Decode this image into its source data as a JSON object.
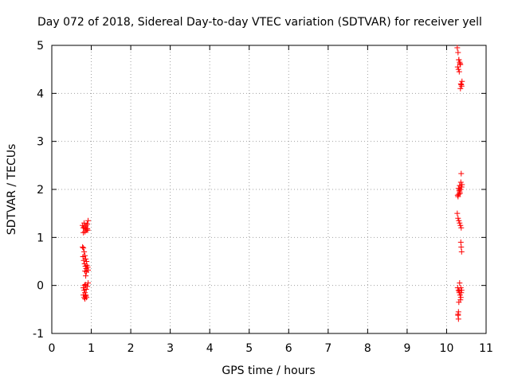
{
  "chart_data": {
    "type": "scatter",
    "title": "Day 072 of 2018, Sidereal Day-to-day VTEC variation (SDTVAR) for receiver yell",
    "xlabel": "GPS time / hours",
    "ylabel": "SDTVAR / TECUs",
    "xlim": [
      0,
      11
    ],
    "ylim": [
      -1,
      5
    ],
    "xticks": [
      "0",
      "1",
      "2",
      "3",
      "4",
      "5",
      "6",
      "7",
      "8",
      "9",
      "10",
      "11"
    ],
    "yticks": [
      "-1",
      "0",
      "1",
      "2",
      "3",
      "4",
      "5"
    ],
    "grid": true,
    "marker": "+",
    "series": [
      {
        "name": "SDTVAR",
        "color": "#ff0000",
        "x": [
          0.78,
          0.8,
          0.82,
          0.85,
          0.88,
          0.9,
          0.92,
          0.8,
          0.84,
          0.87,
          0.9,
          0.82,
          0.86,
          0.91,
          0.78,
          0.8,
          0.82,
          0.84,
          0.86,
          0.88,
          0.79,
          0.81,
          0.83,
          0.85,
          0.87,
          0.89,
          0.91,
          0.84,
          0.88,
          0.92,
          0.86,
          0.8,
          0.82,
          0.84,
          0.86,
          0.88,
          0.9,
          0.92,
          0.83,
          0.87,
          0.85,
          0.8,
          0.82,
          0.84,
          0.86,
          10.27,
          10.29,
          10.31,
          10.33,
          10.35,
          10.28,
          10.3,
          10.32,
          10.34,
          10.36,
          10.38,
          10.31,
          10.35,
          10.37,
          10.39,
          10.29,
          10.31,
          10.33,
          10.35,
          10.37,
          10.39,
          10.3,
          10.32,
          10.34,
          10.36,
          10.38,
          10.28,
          10.33,
          10.37,
          10.27,
          10.29,
          10.31,
          10.33,
          10.35,
          10.37,
          10.36,
          10.38,
          10.37,
          10.28,
          10.3,
          10.32,
          10.34,
          10.36,
          10.38,
          10.31,
          10.35,
          10.33,
          10.37,
          10.3,
          10.29,
          10.32,
          10.36,
          10.3,
          10.29
        ],
        "y": [
          1.25,
          1.2,
          1.22,
          1.18,
          1.15,
          1.28,
          1.35,
          1.1,
          1.12,
          1.25,
          1.18,
          1.3,
          1.22,
          1.15,
          0.8,
          0.78,
          0.7,
          0.62,
          0.55,
          0.5,
          0.6,
          0.52,
          0.45,
          0.4,
          0.35,
          0.42,
          0.38,
          0.3,
          0.28,
          0.32,
          0.2,
          -0.05,
          -0.1,
          -0.15,
          -0.2,
          -0.25,
          -0.02,
          0.05,
          0.0,
          -0.08,
          0.02,
          -0.2,
          -0.25,
          -0.28,
          -0.22,
          4.95,
          4.85,
          4.7,
          4.65,
          4.6,
          4.55,
          4.5,
          4.45,
          4.62,
          4.2,
          4.15,
          4.7,
          4.1,
          4.18,
          4.25,
          1.85,
          1.9,
          1.95,
          2.0,
          2.05,
          2.1,
          2.02,
          1.98,
          1.92,
          2.15,
          2.05,
          1.88,
          2.08,
          2.33,
          1.5,
          1.4,
          1.35,
          1.3,
          1.25,
          1.2,
          0.9,
          0.7,
          0.8,
          -0.05,
          -0.1,
          -0.15,
          -0.2,
          -0.25,
          -0.1,
          -0.35,
          -0.3,
          0.05,
          -0.15,
          -0.55,
          -0.6,
          -0.12,
          -0.05,
          -0.7,
          -0.62
        ]
      }
    ]
  }
}
